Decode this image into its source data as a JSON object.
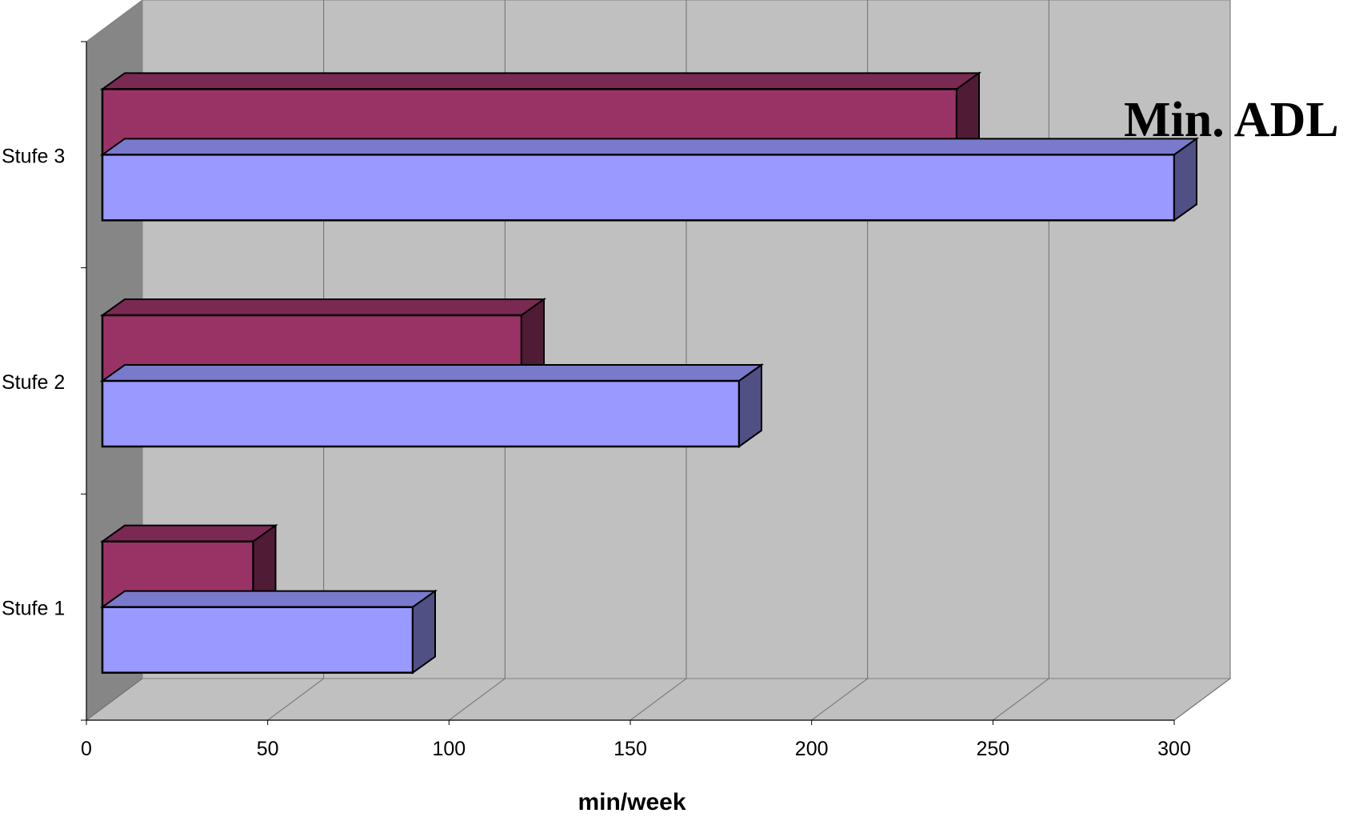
{
  "chart_data": {
    "type": "bar",
    "orientation": "horizontal",
    "style": "3d",
    "title": "Min. ADL",
    "xlabel": "min/week",
    "ylabel": "",
    "categories": [
      "Stufe 1",
      "Stufe 2",
      "Stufe 3"
    ],
    "xlim": [
      0,
      300
    ],
    "x_ticks": [
      "0",
      "50",
      "100",
      "150",
      "200",
      "250",
      "300"
    ],
    "grid": true,
    "legend": "none",
    "series": [
      {
        "values": [
          90,
          180,
          300
        ],
        "color": "#9999ff"
      },
      {
        "values": [
          46,
          120,
          240
        ],
        "color": "#993366"
      }
    ]
  }
}
